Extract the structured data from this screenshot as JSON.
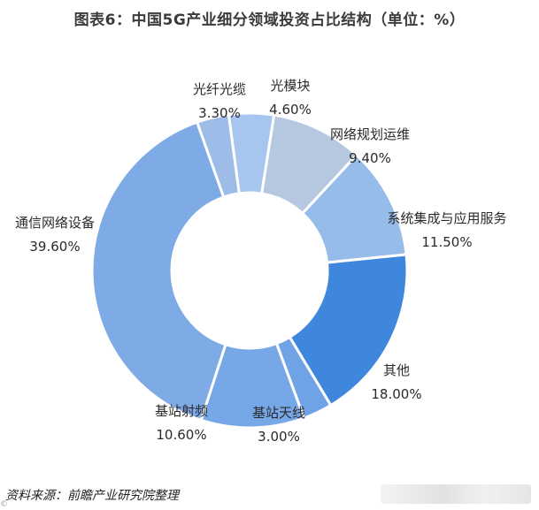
{
  "title": "图表6：中国5G产业细分领域投资占比结构（单位：%）",
  "source": "资料来源：前瞻产业研究院整理",
  "chart_data": {
    "type": "pie",
    "donut": true,
    "title": "图表6：中国5G产业细分领域投资占比结构（单位：%）",
    "slices": [
      {
        "label": "光纤光缆",
        "value": 3.3,
        "value_text": "3.30%",
        "color": "#9dbde8"
      },
      {
        "label": "光模块",
        "value": 4.6,
        "value_text": "4.60%",
        "color": "#a7c6ef"
      },
      {
        "label": "网络规划运维",
        "value": 9.4,
        "value_text": "9.40%",
        "color": "#b5c8e0"
      },
      {
        "label": "系统集成与应用服务",
        "value": 11.5,
        "value_text": "11.50%",
        "color": "#96bce9"
      },
      {
        "label": "其他",
        "value": 18.0,
        "value_text": "18.00%",
        "color": "#3f86dd"
      },
      {
        "label": "基站天线",
        "value": 3.0,
        "value_text": "3.00%",
        "color": "#6fa3e6"
      },
      {
        "label": "基站射频",
        "value": 10.6,
        "value_text": "10.60%",
        "color": "#76a8e7"
      },
      {
        "label": "通信网络设备",
        "value": 39.6,
        "value_text": "39.60%",
        "color": "#7eaae6"
      }
    ]
  }
}
